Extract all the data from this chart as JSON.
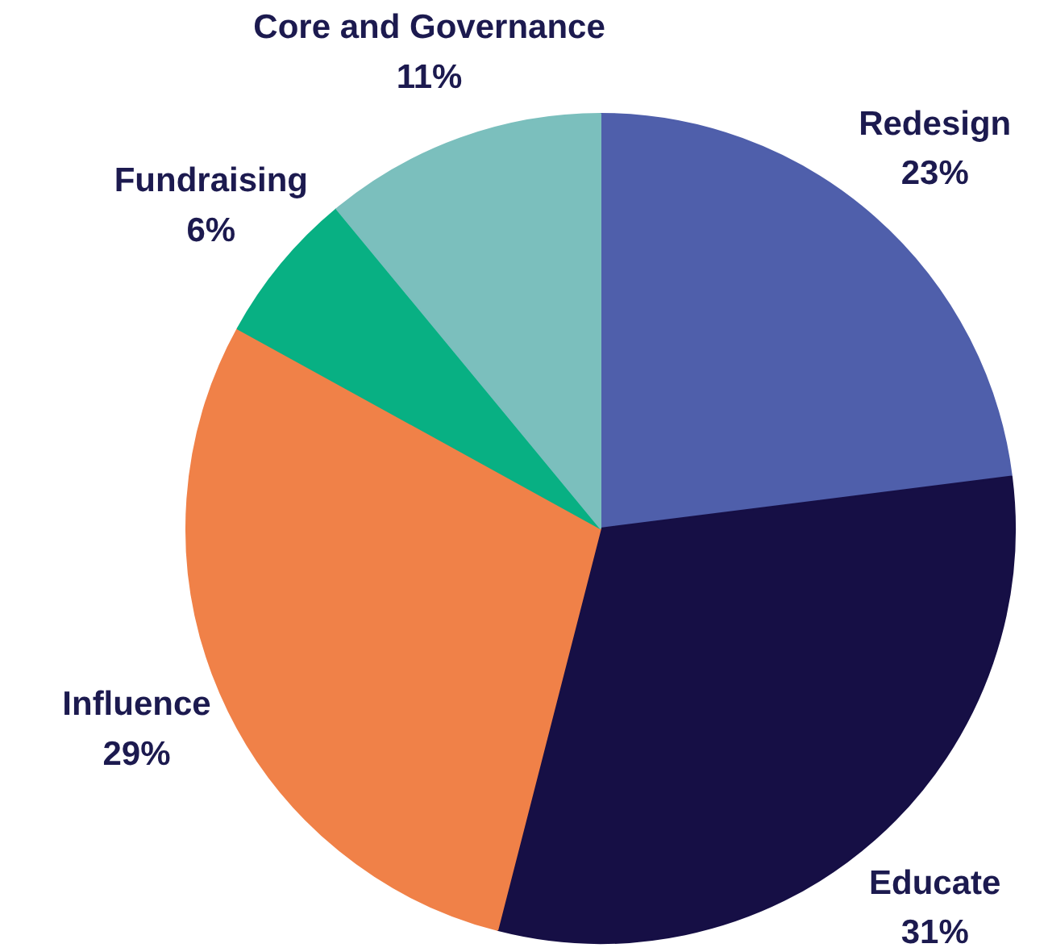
{
  "chart_data": {
    "type": "pie",
    "categories": [
      "Redesign",
      "Educate",
      "Influence",
      "Fundraising",
      "Core and Governance"
    ],
    "values": [
      23,
      31,
      29,
      6,
      11
    ],
    "value_labels": [
      "23%",
      "31%",
      "29%",
      "6%",
      "11%"
    ],
    "colors": [
      "#4f5fab",
      "#160f45",
      "#f08148",
      "#08b083",
      "#7bbfbd"
    ]
  }
}
